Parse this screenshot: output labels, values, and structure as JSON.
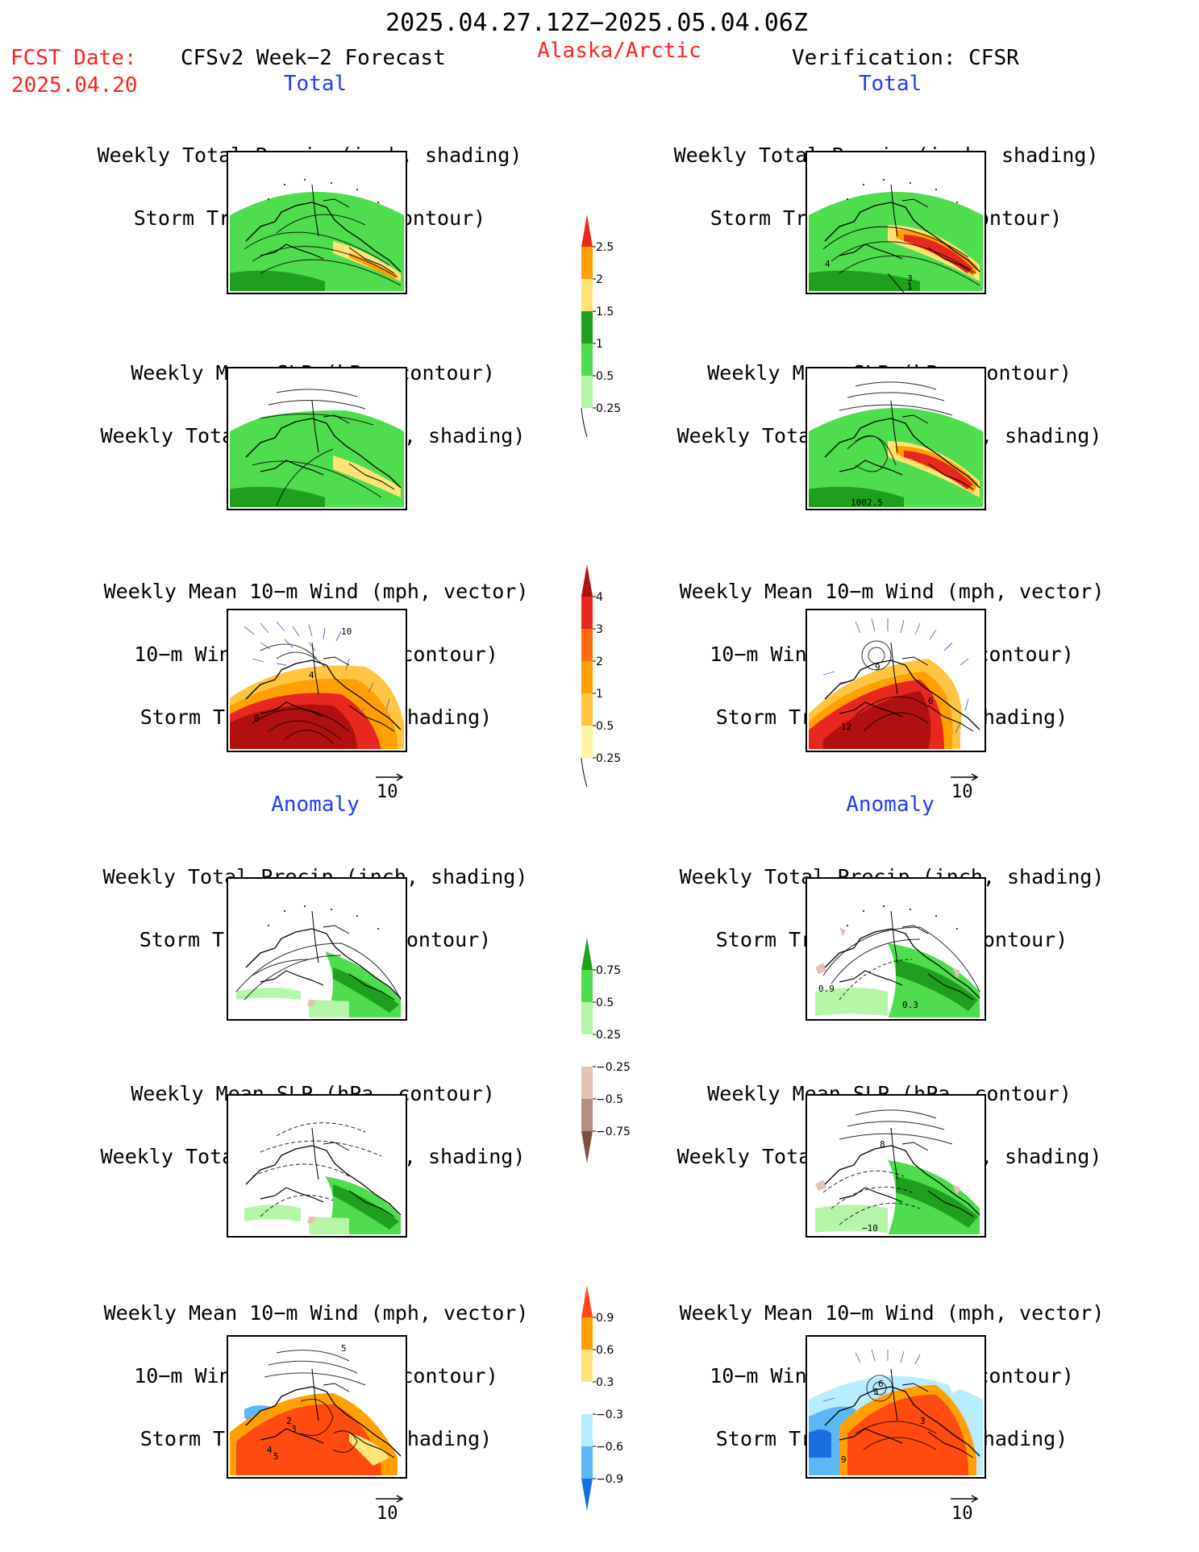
{
  "header": {
    "valid_period": "2025.04.27.12Z−2025.05.04.06Z",
    "fcst_date_label": "FCST Date:",
    "fcst_date_value": "2025.04.20",
    "model_label": "CFSv2 Week−2 Forecast",
    "region": "Alaska/Arctic",
    "verification_label": "Verification: CFSR"
  },
  "sections": {
    "total": "Total",
    "anomaly": "Anomaly"
  },
  "panel_titles": {
    "precip_storm": [
      "Weekly Total Precip (inch, shading)",
      "Storm Track Density (contour)"
    ],
    "slp_precip": [
      "Weekly Mean SLP (hPa, contour)",
      "Weekly Total Precip (inch, shading)"
    ],
    "wind_storm": [
      "Weekly Mean 10−m Wind (mph, vector)",
      "10−m Wind Speed (mph, contour)",
      "Storm Track Density (shading)"
    ]
  },
  "map_labels": {
    "fcst_total_wind": [
      "10",
      "4",
      "8"
    ],
    "ver_total_precip": [
      "4",
      "3",
      "1"
    ],
    "ver_total_slp": [
      "1002.5"
    ],
    "ver_total_wind": [
      "9",
      "6",
      "12"
    ],
    "ver_anom_precip": [
      "0.9",
      "0.3"
    ],
    "ver_anom_slp": [
      "8",
      "−10"
    ],
    "fcst_anom_wind": [
      "5",
      "2",
      "3",
      "4",
      "5"
    ],
    "ver_anom_wind": [
      "3",
      "3",
      "6",
      "9"
    ]
  },
  "reference_vector": {
    "value": "10"
  },
  "colorbars": [
    {
      "id": "precip_total",
      "labels": [
        "2.5",
        "2",
        "1.5",
        "1",
        "0.5",
        "0.25"
      ],
      "colors": [
        "#e8281e",
        "#ff9f00",
        "#ffe377",
        "#1f9e1f",
        "#4fdc4f",
        "#b5f5a7"
      ]
    },
    {
      "id": "storm_total",
      "labels": [
        "4",
        "3",
        "2",
        "1",
        "0.5",
        "0.25"
      ],
      "colors": [
        "#b01010",
        "#e8281e",
        "#ff6a10",
        "#ff9f00",
        "#ffc540",
        "#fff5a0"
      ]
    },
    {
      "id": "precip_anom",
      "labels": [
        "0.75",
        "0.5",
        "0.25",
        "−0.25",
        "−0.5",
        "−0.75"
      ],
      "colors": [
        "#1f9e1f",
        "#4fdc4f",
        "#b5f5a7",
        "#ffffff",
        "#e3c1b4",
        "#b78f80",
        "#7a5040"
      ]
    },
    {
      "id": "storm_anom",
      "labels": [
        "0.9",
        "0.6",
        "0.3",
        "−0.3",
        "−0.6",
        "−0.9"
      ],
      "colors": [
        "#ff4a10",
        "#ff9f00",
        "#ffe377",
        "#ffffff",
        "#b8ecff",
        "#5cb8f5",
        "#1a6fe0"
      ]
    }
  ]
}
